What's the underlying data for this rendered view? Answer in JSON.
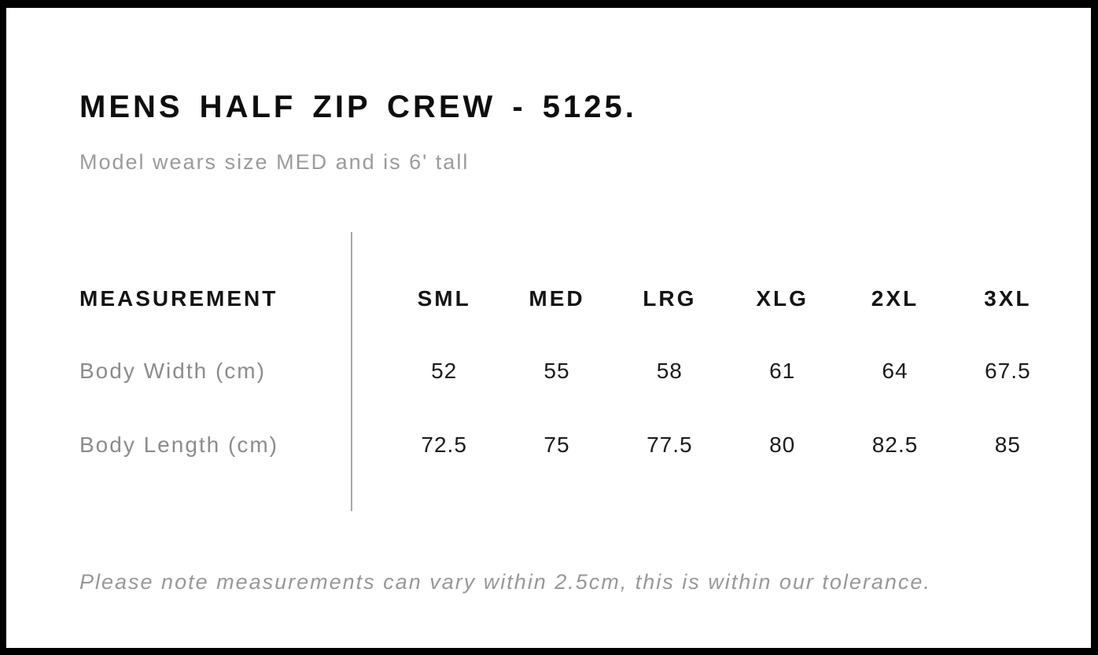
{
  "header": {
    "title": "MENS HALF ZIP CREW - 5125.",
    "subtitle": "Model wears size MED and is 6' tall"
  },
  "table": {
    "label_header": "MEASUREMENT",
    "columns": [
      "SML",
      "MED",
      "LRG",
      "XLG",
      "2XL",
      "3XL"
    ],
    "rows": [
      {
        "label": "Body Width (cm)",
        "values": [
          "52",
          "55",
          "58",
          "61",
          "64",
          "67.5"
        ]
      },
      {
        "label": "Body Length (cm)",
        "values": [
          "72.5",
          "75",
          "77.5",
          "80",
          "82.5",
          "85"
        ]
      }
    ]
  },
  "note": "Please note measurements can vary within 2.5cm, this is within our tolerance.",
  "colors": {
    "frame": "#000000",
    "heading_text": "#0e0e0e",
    "value_text": "#1b1b1b",
    "muted_text": "#8c8c8c",
    "subtitle_text": "#9b9b9b",
    "divider": "#a8a8a8",
    "background": "#ffffff"
  }
}
